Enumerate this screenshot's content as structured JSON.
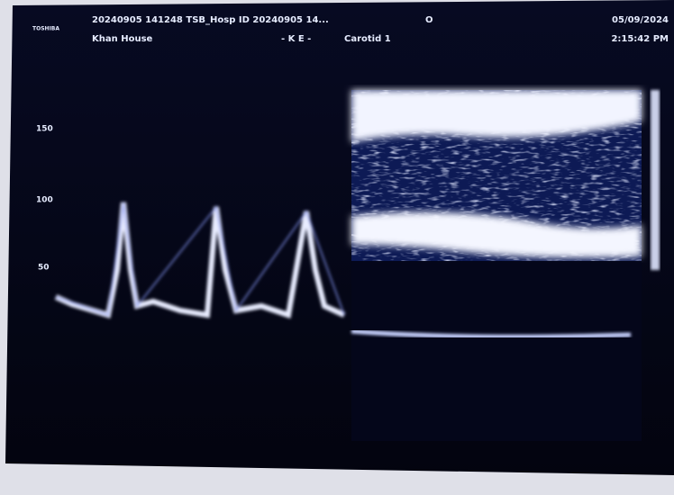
{
  "header": {
    "brand": "TOSHIBA",
    "study_line": "20240905 141248 TSB_Hosp ID 20240905 14...",
    "marker": "O",
    "date": "05/09/2024",
    "patient": "Khan House",
    "operator": "- K E -",
    "preset": "Carotid 1",
    "time": "2:15:42 PM"
  },
  "scale": {
    "labels": [
      "150",
      "100",
      "50"
    ]
  }
}
